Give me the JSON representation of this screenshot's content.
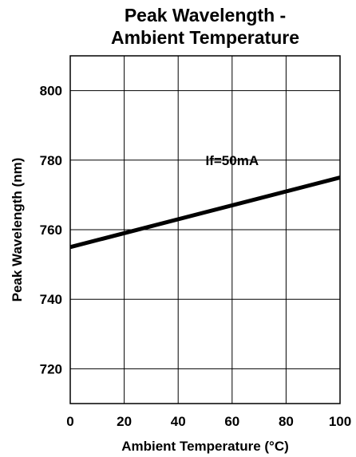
{
  "chart_data": {
    "type": "line",
    "title": [
      "Peak Wavelength -",
      "Ambient Temperature"
    ],
    "xlabel": "Ambient Temperature (°C)",
    "ylabel": "Peak Wavelength (nm)",
    "xlim": [
      0,
      100
    ],
    "ylim": [
      710,
      810
    ],
    "x_ticks": [
      0,
      20,
      40,
      60,
      80,
      100
    ],
    "y_ticks": [
      720,
      740,
      760,
      780,
      800
    ],
    "x_tick_labels": [
      "0",
      "20",
      "40",
      "60",
      "80",
      "100"
    ],
    "y_tick_labels": [
      "720",
      "740",
      "760",
      "780",
      "800"
    ],
    "grid": true,
    "series": [
      {
        "name": "If=50mA",
        "x": [
          0,
          100
        ],
        "y": [
          755,
          775
        ]
      }
    ],
    "annotations": [
      {
        "text": "If=50mA",
        "x": 60,
        "y": 780
      }
    ],
    "colors": {
      "line": "#000000",
      "grid": "#000000",
      "background": "#ffffff"
    }
  }
}
